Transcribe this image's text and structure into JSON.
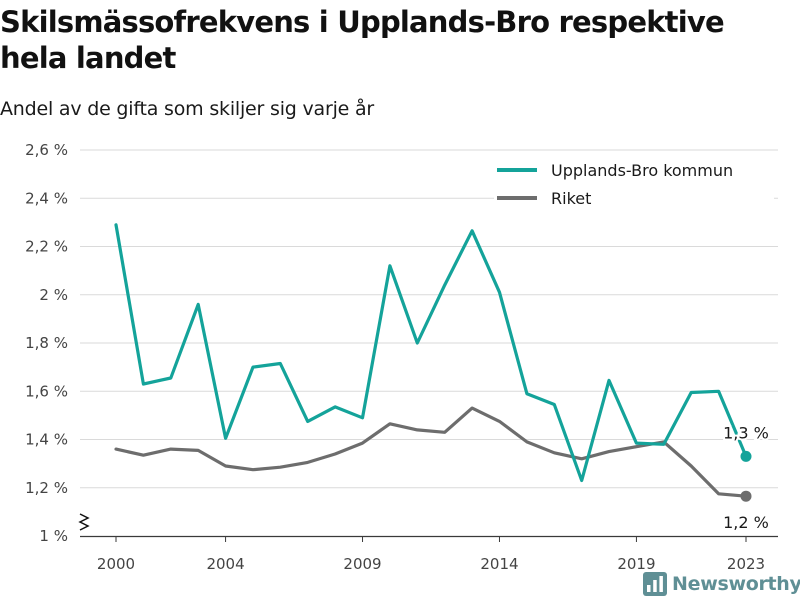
{
  "title": "Skilsmässofrekvens i Upplands-Bro respektive hela landet",
  "subtitle": "Andel av de gifta som skiljer sig varje år",
  "logo": {
    "text": "Newsworthy",
    "icon": "newsworthy-logo-icon"
  },
  "colors": {
    "upplands_bro": "#14a39a",
    "riket": "#6d6d6d",
    "grid": "#dadada",
    "axis": "#3a3a3a"
  },
  "chart_data": {
    "type": "line",
    "ylim": [
      1.0,
      2.6
    ],
    "y_axis_break": true,
    "y_ticks": [
      {
        "value": 1.0,
        "label": "1 %"
      },
      {
        "value": 1.2,
        "label": "1,2 %"
      },
      {
        "value": 1.4,
        "label": "1,4 %"
      },
      {
        "value": 1.6,
        "label": "1,6 %"
      },
      {
        "value": 1.8,
        "label": "1,8 %"
      },
      {
        "value": 2.0,
        "label": "2 %"
      },
      {
        "value": 2.2,
        "label": "2,2 %"
      },
      {
        "value": 2.4,
        "label": "2,4 %"
      },
      {
        "value": 2.6,
        "label": "2,6 %"
      }
    ],
    "x": [
      2000,
      2001,
      2002,
      2003,
      2004,
      2005,
      2006,
      2007,
      2008,
      2009,
      2010,
      2011,
      2012,
      2013,
      2014,
      2015,
      2016,
      2017,
      2018,
      2019,
      2020,
      2021,
      2022,
      2023
    ],
    "x_ticks": [
      2000,
      2004,
      2009,
      2014,
      2019,
      2023
    ],
    "grid": true,
    "legend_position": "top-right",
    "series": [
      {
        "name": "Upplands-Bro kommun",
        "color": "#14a39a",
        "values": [
          2.29,
          1.63,
          1.655,
          1.96,
          1.405,
          1.7,
          1.715,
          1.475,
          1.535,
          1.49,
          2.12,
          1.8,
          2.04,
          2.265,
          2.01,
          1.59,
          1.545,
          1.23,
          1.645,
          1.385,
          1.38,
          1.595,
          1.6,
          1.33
        ],
        "end_label": "1,3 %"
      },
      {
        "name": "Riket",
        "color": "#6d6d6d",
        "values": [
          1.36,
          1.335,
          1.36,
          1.355,
          1.29,
          1.275,
          1.285,
          1.305,
          1.34,
          1.385,
          1.465,
          1.44,
          1.43,
          1.53,
          1.475,
          1.39,
          1.345,
          1.32,
          1.35,
          1.37,
          1.39,
          1.29,
          1.175,
          1.165
        ],
        "end_label": "1,2 %"
      }
    ]
  }
}
